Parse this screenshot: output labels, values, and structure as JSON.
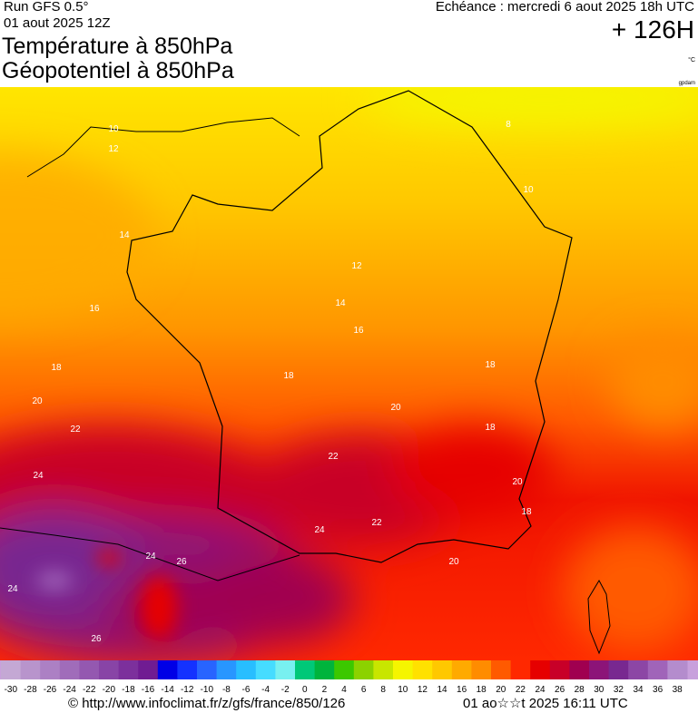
{
  "header": {
    "run": "Run GFS 0.5°",
    "run_date": "01 aout 2025 12Z",
    "title_line1": "Température à 850hPa",
    "title_line2": "Géopotentiel à 850hPa",
    "echeance": "Echéance : mercredi 6 aout 2025 18h UTC",
    "lead": "+ 126H",
    "unit": "°C",
    "credit": "gpdam"
  },
  "map": {
    "contour_labels": [
      10,
      12,
      8,
      10,
      14,
      16,
      12,
      14,
      16,
      18,
      18,
      18,
      20,
      20,
      22,
      18,
      22,
      24,
      20,
      18,
      22,
      24,
      24,
      26,
      24,
      20,
      26
    ]
  },
  "legend": {
    "ticks": [
      -30,
      -28,
      -26,
      -24,
      -22,
      -20,
      -18,
      -16,
      -14,
      -12,
      -10,
      -8,
      -6,
      -4,
      -2,
      0,
      2,
      4,
      6,
      8,
      10,
      12,
      14,
      16,
      18,
      20,
      22,
      24,
      26,
      28,
      30,
      32,
      34,
      36,
      38
    ],
    "colors": [
      "#c4a8d4",
      "#b894cc",
      "#ac80c4",
      "#a06cba",
      "#9458b0",
      "#8844a6",
      "#7c309c",
      "#701c92",
      "#0000e6",
      "#1432ff",
      "#2864ff",
      "#2896ff",
      "#28beff",
      "#46dcff",
      "#78f0f0",
      "#00c878",
      "#00b43c",
      "#3cc800",
      "#8cd200",
      "#c8e600",
      "#f5f500",
      "#ffe100",
      "#ffc800",
      "#ffaa00",
      "#ff8c00",
      "#ff5a00",
      "#ff2800",
      "#e60000",
      "#c80028",
      "#a00050",
      "#8c1478",
      "#782890",
      "#8c46a5",
      "#a064b9",
      "#b48ccd"
    ]
  },
  "footer": {
    "url": "© http://www.infoclimat.fr/z/gfs/france/850/126",
    "timestamp": "01 ao☆☆t 2025 16:11 UTC"
  }
}
